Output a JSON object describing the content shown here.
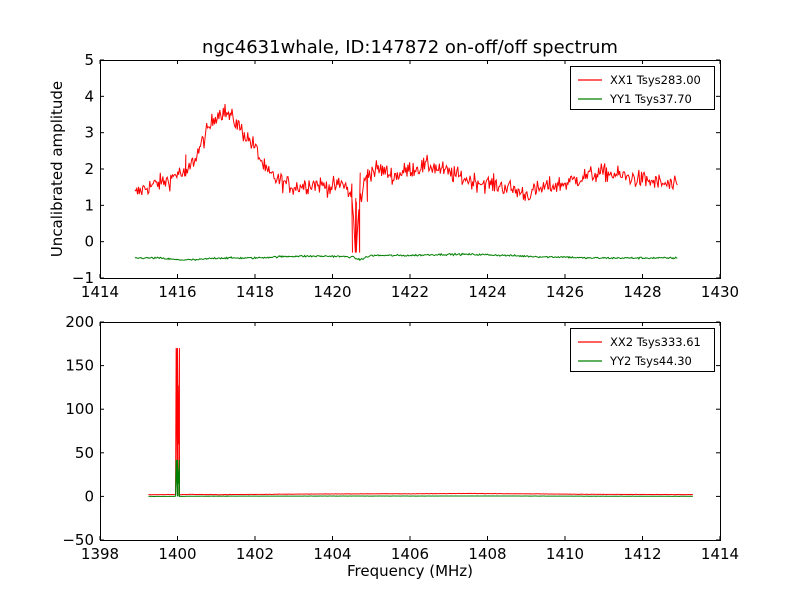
{
  "chart_data": [
    {
      "type": "line",
      "title": "ngc4631whale, ID:147872 on-off/off spectrum",
      "xlabel": "",
      "ylabel": "Uncalibrated amplitude",
      "xlim": [
        1414,
        1430
      ],
      "ylim": [
        -1,
        5
      ],
      "xticks": [
        1414,
        1416,
        1418,
        1420,
        1422,
        1424,
        1426,
        1428,
        1430
      ],
      "xtick_labels": [
        "1414",
        "1416",
        "1418",
        "1420",
        "1422",
        "1424",
        "1426",
        "1428",
        "1430"
      ],
      "yticks": [
        -1,
        0,
        1,
        2,
        3,
        4,
        5
      ],
      "ytick_labels": [
        "−1",
        "0",
        "1",
        "2",
        "3",
        "4",
        "5"
      ],
      "grid": false,
      "legend_position": "top-right",
      "series": [
        {
          "name": "XX1 Tsys283.00",
          "color": "#ff0000",
          "x": [
            1414.9,
            1415.2,
            1415.5,
            1415.8,
            1416.0,
            1416.2,
            1416.5,
            1416.8,
            1417.0,
            1417.2,
            1417.5,
            1417.7,
            1418.0,
            1418.3,
            1418.6,
            1419.0,
            1419.5,
            1420.0,
            1420.3,
            1420.5,
            1420.6,
            1420.7,
            1420.9,
            1421.2,
            1421.6,
            1422.0,
            1422.5,
            1423.0,
            1423.5,
            1424.0,
            1424.5,
            1425.0,
            1425.5,
            1426.0,
            1426.5,
            1427.0,
            1427.5,
            1428.0,
            1428.5,
            1428.9
          ],
          "values": [
            1.3,
            1.5,
            1.6,
            1.7,
            1.9,
            1.8,
            2.4,
            3.1,
            3.5,
            3.6,
            3.3,
            3.0,
            2.6,
            1.9,
            1.7,
            1.5,
            1.6,
            1.5,
            1.6,
            1.2,
            -0.3,
            1.1,
            1.9,
            2.0,
            1.8,
            2.0,
            2.1,
            1.9,
            1.7,
            1.6,
            1.5,
            1.3,
            1.5,
            1.6,
            1.8,
            1.9,
            1.8,
            1.7,
            1.6,
            1.5
          ]
        },
        {
          "name": "YY1 Tsys37.70",
          "color": "#008000",
          "x": [
            1414.9,
            1415.5,
            1416.0,
            1416.5,
            1417.0,
            1417.5,
            1418.0,
            1418.5,
            1419.0,
            1419.5,
            1420.0,
            1420.5,
            1420.7,
            1421.0,
            1421.5,
            1422.0,
            1422.5,
            1423.0,
            1423.5,
            1424.0,
            1424.5,
            1425.0,
            1425.5,
            1426.0,
            1426.5,
            1427.0,
            1427.5,
            1428.0,
            1428.5,
            1428.9
          ],
          "values": [
            -0.45,
            -0.45,
            -0.5,
            -0.5,
            -0.45,
            -0.45,
            -0.45,
            -0.42,
            -0.4,
            -0.4,
            -0.4,
            -0.42,
            -0.5,
            -0.38,
            -0.38,
            -0.38,
            -0.36,
            -0.35,
            -0.35,
            -0.36,
            -0.38,
            -0.4,
            -0.42,
            -0.42,
            -0.45,
            -0.45,
            -0.45,
            -0.45,
            -0.45,
            -0.45
          ]
        }
      ]
    },
    {
      "type": "line",
      "title": "",
      "xlabel": "Frequency (MHz)",
      "ylabel": "",
      "xlim": [
        1398,
        1414
      ],
      "ylim": [
        -50,
        200
      ],
      "xticks": [
        1398,
        1400,
        1402,
        1404,
        1406,
        1408,
        1410,
        1412,
        1414
      ],
      "xtick_labels": [
        "1398",
        "1400",
        "1402",
        "1404",
        "1406",
        "1408",
        "1410",
        "1412",
        "1414"
      ],
      "yticks": [
        -50,
        0,
        50,
        100,
        150,
        200
      ],
      "ytick_labels": [
        "−50",
        "0",
        "50",
        "100",
        "150",
        "200"
      ],
      "grid": false,
      "legend_position": "top-right",
      "series": [
        {
          "name": "XX2 Tsys333.61",
          "color": "#ff0000",
          "x": [
            1399.25,
            1399.5,
            1399.8,
            1399.95,
            1400.0,
            1400.05,
            1400.3,
            1401.0,
            1402.0,
            1403.0,
            1404.0,
            1405.0,
            1406.0,
            1407.0,
            1407.5,
            1408.0,
            1409.0,
            1410.0,
            1411.0,
            1412.0,
            1413.3
          ],
          "values": [
            2,
            2,
            2.2,
            2,
            170,
            2,
            2.3,
            2,
            2.3,
            2.6,
            2.8,
            3,
            3,
            3.2,
            3.5,
            3.2,
            3,
            2.6,
            2.3,
            2.2,
            2
          ]
        },
        {
          "name": "YY2 Tsys44.30",
          "color": "#008000",
          "x": [
            1399.25,
            1399.5,
            1399.8,
            1399.95,
            1400.0,
            1400.05,
            1400.3,
            1402.0,
            1404.0,
            1406.0,
            1408.0,
            1410.0,
            1412.0,
            1413.3
          ],
          "values": [
            0,
            0,
            0.1,
            0,
            42,
            0,
            0.2,
            0.3,
            0.4,
            0.4,
            0.5,
            0.3,
            0.2,
            0.1
          ]
        }
      ]
    }
  ]
}
